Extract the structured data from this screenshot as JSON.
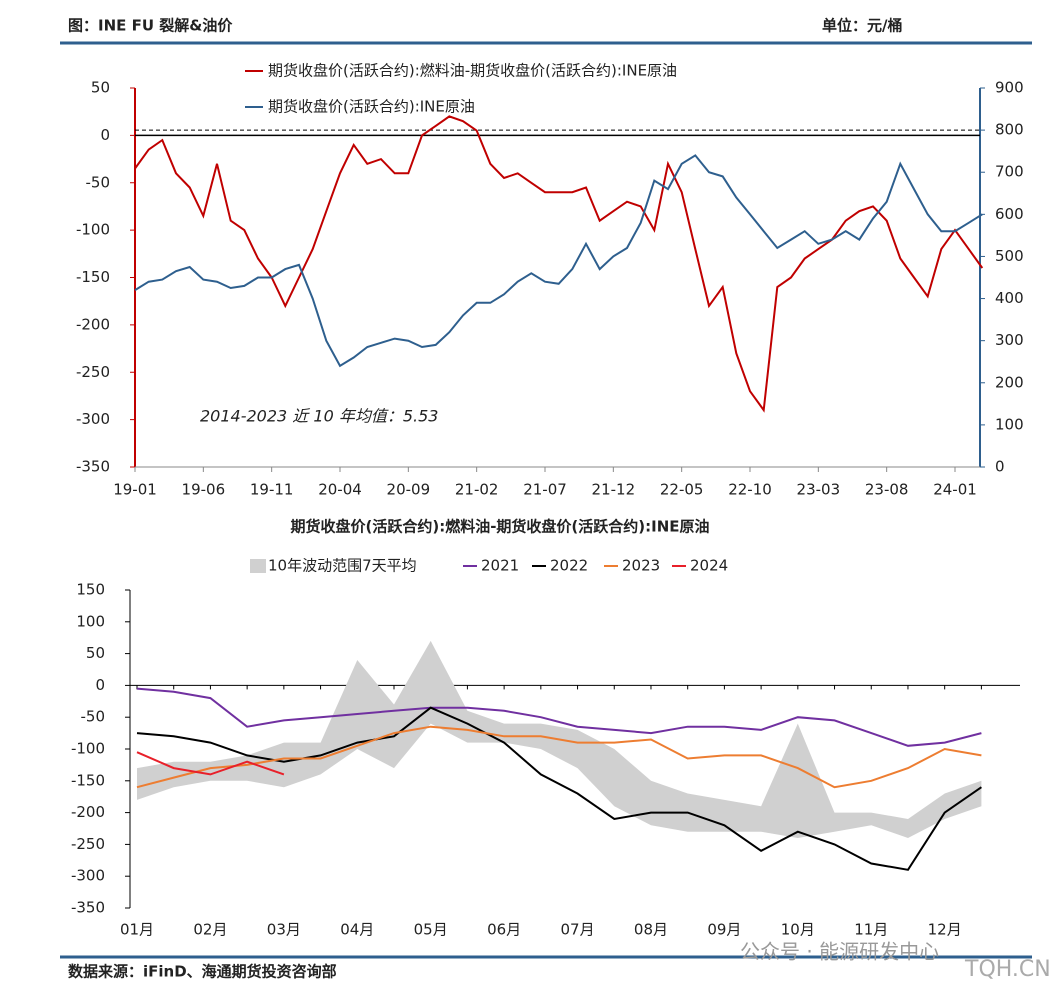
{
  "header": {
    "title": "图：INE FU 裂解&油价",
    "unit": "单位：元/桶"
  },
  "footer": {
    "source": "数据来源：iFinD、海通期货投资咨询部"
  },
  "watermark": [
    "公众号 · 能源研发中心",
    "TQH.CN"
  ],
  "chart_data": [
    {
      "type": "line",
      "categories": [
        "19-01",
        null,
        null,
        null,
        null,
        "19-06",
        null,
        null,
        null,
        null,
        "19-11",
        null,
        null,
        null,
        null,
        "20-04",
        null,
        null,
        null,
        null,
        "20-09",
        null,
        null,
        null,
        null,
        "21-02",
        null,
        null,
        null,
        null,
        "21-07",
        null,
        null,
        null,
        null,
        "21-12",
        null,
        null,
        null,
        null,
        "22-05",
        null,
        null,
        null,
        null,
        "22-10",
        null,
        null,
        null,
        null,
        "23-03",
        null,
        null,
        null,
        null,
        "23-08",
        null,
        null,
        null,
        null,
        "24-01",
        null,
        null
      ],
      "series": [
        {
          "name": "期货收盘价(活跃合约):燃料油-期货收盘价(活跃合约):INE原油",
          "color": "#c00000",
          "axis": "y",
          "values": [
            -35,
            -15,
            -5,
            -40,
            -55,
            -85,
            -30,
            -90,
            -100,
            -130,
            -150,
            -180,
            -150,
            -120,
            -80,
            -40,
            -10,
            -30,
            -25,
            -40,
            -40,
            0,
            10,
            20,
            15,
            5,
            -30,
            -45,
            -40,
            -50,
            -60,
            -60,
            -60,
            -55,
            -90,
            -80,
            -70,
            -75,
            -100,
            -30,
            -60,
            -120,
            -180,
            -160,
            -230,
            -270,
            -290,
            -160,
            -150,
            -130,
            -120,
            -110,
            -90,
            -80,
            -75,
            -90,
            -130,
            -150,
            -170,
            -120,
            -100,
            -120,
            -140
          ]
        },
        {
          "name": "期货收盘价(活跃合约):INE原油",
          "color": "#2e5f8e",
          "axis": "y2",
          "values": [
            420,
            440,
            445,
            465,
            475,
            445,
            440,
            425,
            430,
            450,
            450,
            470,
            480,
            400,
            300,
            240,
            260,
            285,
            295,
            305,
            300,
            285,
            290,
            320,
            360,
            390,
            390,
            410,
            440,
            460,
            440,
            435,
            470,
            530,
            470,
            500,
            520,
            580,
            680,
            660,
            720,
            740,
            700,
            690,
            640,
            600,
            560,
            520,
            540,
            560,
            530,
            540,
            560,
            540,
            590,
            630,
            720,
            660,
            600,
            560,
            560,
            580,
            600
          ]
        }
      ],
      "ylim": [
        -350,
        50
      ],
      "yticks": [
        -350,
        -300,
        -250,
        -200,
        -150,
        -100,
        -50,
        0,
        50
      ],
      "y2lim": [
        0,
        900
      ],
      "y2ticks": [
        0,
        100,
        200,
        300,
        400,
        500,
        600,
        700,
        800,
        900
      ],
      "mean_line": 5.53,
      "annotation": "2014-2023 近 10 年均值：5.53"
    },
    {
      "type": "line",
      "title": "期货收盘价(活跃合约):燃料油-期货收盘价(活跃合约):INE原油",
      "categories": [
        "01月",
        null,
        "02月",
        null,
        "03月",
        null,
        "04月",
        null,
        "05月",
        null,
        "06月",
        null,
        "07月",
        null,
        "08月",
        null,
        "09月",
        null,
        "10月",
        null,
        "11月",
        null,
        "12月",
        null
      ],
      "series": [
        {
          "name": "10年波动范围7天平均",
          "color": "#d0d0d0",
          "type": "range",
          "low": [
            -180,
            -160,
            -150,
            -150,
            -160,
            -140,
            -100,
            -130,
            -60,
            -90,
            -90,
            -100,
            -130,
            -190,
            -220,
            -230,
            -230,
            -230,
            -240,
            -230,
            -220,
            -240,
            -210,
            -190
          ],
          "high": [
            -130,
            -120,
            -120,
            -110,
            -90,
            -90,
            40,
            -30,
            70,
            -40,
            -60,
            -60,
            -70,
            -100,
            -150,
            -170,
            -180,
            -190,
            -60,
            -200,
            -200,
            -210,
            -170,
            -150
          ]
        },
        {
          "name": "2021",
          "color": "#7030a0",
          "values": [
            -5,
            -10,
            -20,
            -65,
            -55,
            -50,
            -45,
            -40,
            -35,
            -35,
            -40,
            -50,
            -65,
            -70,
            -75,
            -65,
            -65,
            -70,
            -50,
            -55,
            -75,
            -95,
            -90,
            -75
          ]
        },
        {
          "name": "2022",
          "color": "#000000",
          "values": [
            -75,
            -80,
            -90,
            -110,
            -120,
            -110,
            -90,
            -80,
            -35,
            -60,
            -90,
            -140,
            -170,
            -210,
            -200,
            -200,
            -220,
            -260,
            -230,
            -250,
            -280,
            -290,
            -200,
            -160
          ]
        },
        {
          "name": "2023",
          "color": "#ed7d31",
          "values": [
            -160,
            -145,
            -130,
            -125,
            -115,
            -115,
            -95,
            -75,
            -65,
            -70,
            -80,
            -80,
            -90,
            -90,
            -85,
            -115,
            -110,
            -110,
            -130,
            -160,
            -150,
            -130,
            -100,
            -110
          ]
        },
        {
          "name": "2024",
          "color": "#e8202a",
          "values": [
            -105,
            -130,
            -140,
            -120,
            -140,
            null,
            null,
            null,
            null,
            null,
            null,
            null,
            null,
            null,
            null,
            null,
            null,
            null,
            null,
            null,
            null,
            null,
            null,
            null
          ]
        }
      ],
      "ylim": [
        -350,
        150
      ],
      "yticks": [
        -350,
        -300,
        -250,
        -200,
        -150,
        -100,
        -50,
        0,
        50,
        100,
        150
      ]
    }
  ]
}
